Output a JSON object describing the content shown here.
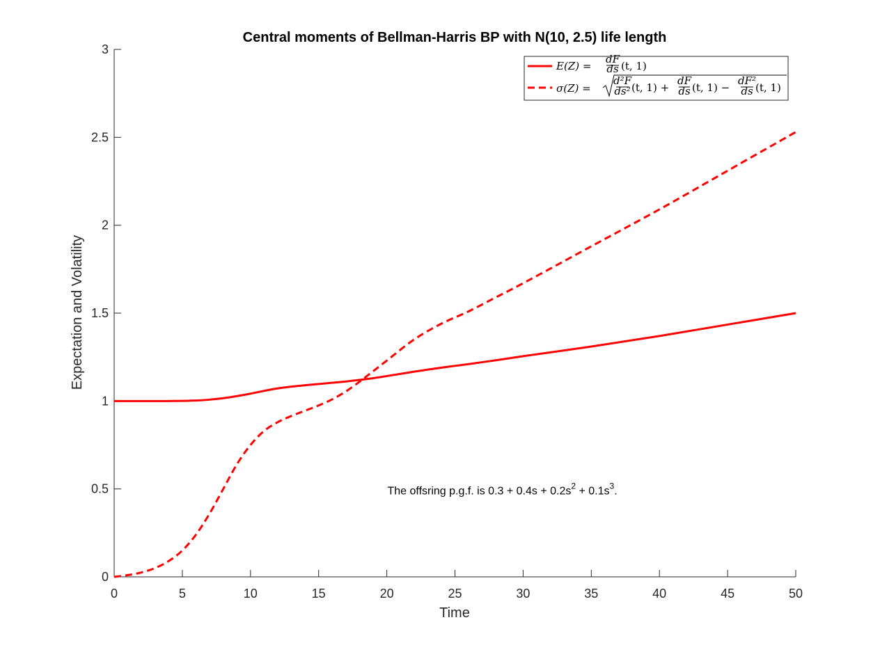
{
  "chart_data": {
    "type": "line",
    "title": "Central moments of Bellman-Harris BP with N(10, 2.5) life length",
    "xlabel": "Time",
    "ylabel": "Expectation and Volatility",
    "xlim": [
      0,
      50
    ],
    "ylim": [
      0,
      3
    ],
    "xticks": [
      0,
      5,
      10,
      15,
      20,
      25,
      30,
      35,
      40,
      45,
      50
    ],
    "yticks": [
      0,
      0.5,
      1,
      1.5,
      2,
      2.5,
      3
    ],
    "ytick_labels": [
      "0",
      "0.5",
      "1",
      "1.5",
      "2",
      "2.5",
      "3"
    ],
    "grid": false,
    "legend_position": "top-right",
    "color": "#ff0000",
    "series": [
      {
        "name": "E(Z) = dF/ds(t,1)",
        "style": "solid",
        "x": [
          0,
          2,
          4,
          6,
          7,
          8,
          9,
          10,
          11,
          12,
          13,
          14,
          15,
          16,
          17,
          18,
          19,
          20,
          22,
          24,
          26,
          28,
          30,
          35,
          40,
          45,
          50
        ],
        "y": [
          1.0,
          1.0,
          1.0,
          1.003,
          1.008,
          1.016,
          1.028,
          1.042,
          1.058,
          1.072,
          1.082,
          1.09,
          1.097,
          1.104,
          1.111,
          1.12,
          1.13,
          1.142,
          1.167,
          1.19,
          1.21,
          1.232,
          1.255,
          1.31,
          1.37,
          1.435,
          1.5
        ]
      },
      {
        "name": "σ(Z) = sqrt(d²F/ds²(t,1) + dF/ds(t,1) − dF²/ds(t,1))",
        "style": "dashed",
        "x": [
          0,
          1,
          2,
          3,
          4,
          5,
          6,
          7,
          8,
          9,
          10,
          11,
          12,
          13,
          14,
          15,
          16,
          17,
          18,
          19,
          20,
          22,
          24,
          26,
          28,
          30,
          35,
          40,
          45,
          50
        ],
        "y": [
          0.0,
          0.01,
          0.025,
          0.05,
          0.09,
          0.15,
          0.24,
          0.36,
          0.5,
          0.64,
          0.75,
          0.83,
          0.88,
          0.915,
          0.945,
          0.975,
          1.01,
          1.055,
          1.11,
          1.17,
          1.23,
          1.35,
          1.44,
          1.51,
          1.59,
          1.67,
          1.88,
          2.09,
          2.31,
          2.53
        ]
      }
    ],
    "legend_entries": [
      {
        "lhs": "E(Z) = ",
        "frac_num": "dF",
        "frac_den": "ds",
        "rhs": "(t, 1)"
      },
      {
        "lhs": "σ(Z) = ",
        "terms": [
          {
            "num": "d²F",
            "den": "ds²",
            "arg": "(t, 1) +"
          },
          {
            "num": "dF",
            "den": "ds",
            "arg": "(t, 1) −"
          },
          {
            "num": "dF²",
            "den": "ds",
            "arg": "(t, 1)"
          }
        ]
      }
    ],
    "annotation": {
      "prefix": "The offsring p.g.f. is 0.3 + 0.4s + 0.2s",
      "sup1": "2",
      "middle": " + 0.1s",
      "sup2": "3",
      "suffix": ".",
      "at": [
        25,
        0.5
      ]
    }
  }
}
